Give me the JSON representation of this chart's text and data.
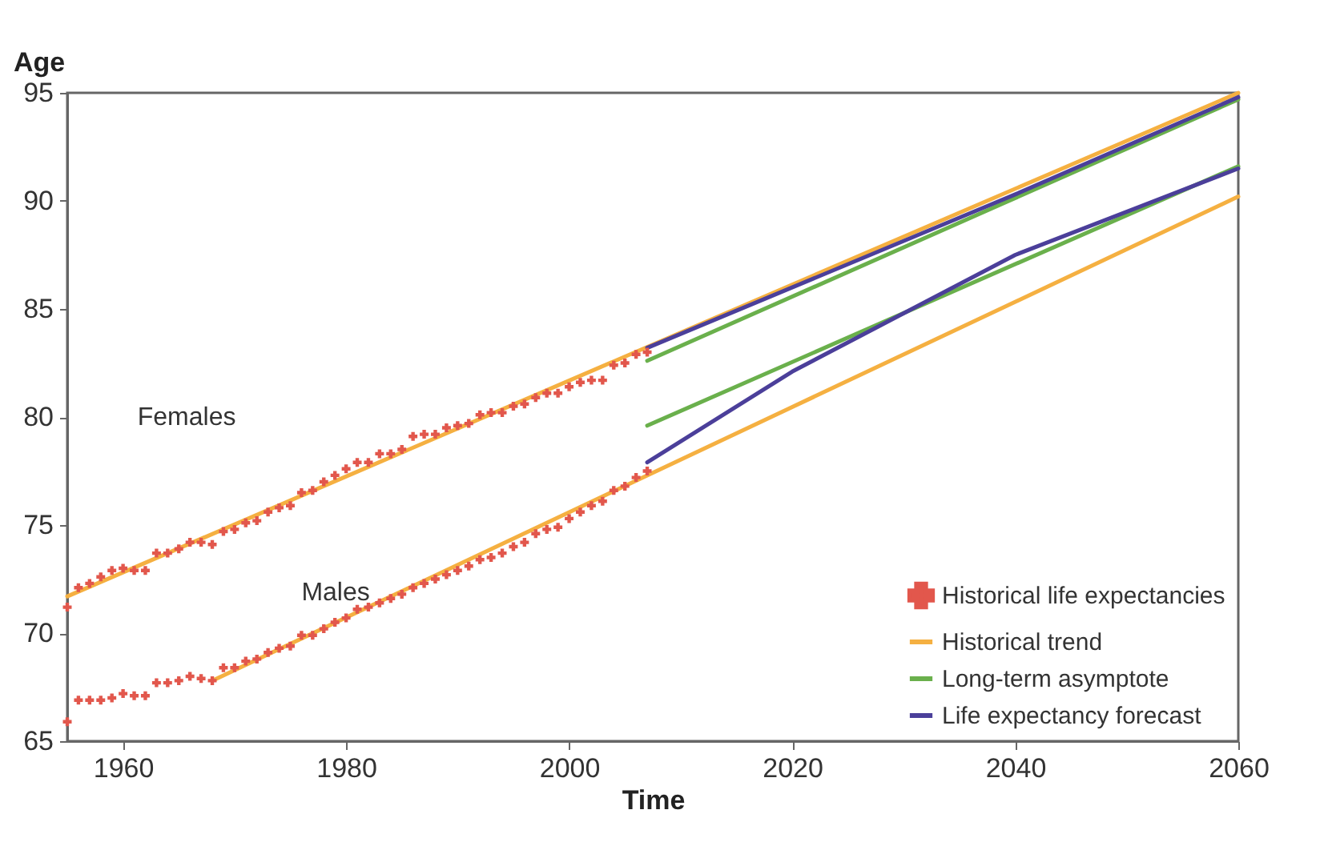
{
  "chart_data": {
    "type": "line",
    "xlabel": "Time",
    "ylabel": "Age",
    "xlim": [
      1955,
      2060
    ],
    "xticks": [
      1960,
      1980,
      2000,
      2020,
      2040,
      2060
    ],
    "ylim": [
      65,
      95
    ],
    "yticks": [
      65,
      70,
      75,
      80,
      85,
      90,
      95
    ],
    "grid": false,
    "legend": "bottom right",
    "annotations": [
      "Females",
      "Males"
    ],
    "series": [
      {
        "name": "Historical life expectancies",
        "type": "scatter",
        "marker": "cross",
        "color": "#e2574c",
        "x": [
          1955,
          1956,
          1957,
          1958,
          1959,
          1960,
          1961,
          1962,
          1963,
          1964,
          1965,
          1966,
          1967,
          1968,
          1969,
          1970,
          1971,
          1972,
          1973,
          1974,
          1975,
          1976,
          1977,
          1978,
          1979,
          1980,
          1981,
          1982,
          1983,
          1984,
          1985,
          1986,
          1987,
          1988,
          1989,
          1990,
          1991,
          1992,
          1993,
          1994,
          1995,
          1996,
          1997,
          1998,
          1999,
          2000,
          2001,
          2002,
          2003,
          2004,
          2005,
          2006,
          2007
        ],
        "values": [
          71.2,
          72.1,
          72.3,
          72.6,
          72.9,
          73.0,
          72.9,
          72.9,
          73.7,
          73.7,
          73.9,
          74.2,
          74.2,
          74.1,
          74.7,
          74.8,
          75.1,
          75.2,
          75.6,
          75.8,
          75.9,
          76.5,
          76.6,
          77.0,
          77.3,
          77.6,
          77.9,
          77.9,
          78.3,
          78.3,
          78.5,
          79.1,
          79.2,
          79.2,
          79.5,
          79.6,
          79.7,
          80.1,
          80.2,
          80.2,
          80.5,
          80.6,
          80.9,
          81.1,
          81.1,
          81.4,
          81.6,
          81.7,
          81.7,
          82.4,
          82.5,
          82.9,
          83.0
        ]
      },
      {
        "type": "scatter",
        "marker": "cross",
        "color": "#e2574c",
        "x": [
          1955,
          1956,
          1957,
          1958,
          1959,
          1960,
          1961,
          1962,
          1963,
          1964,
          1965,
          1966,
          1967,
          1968,
          1969,
          1970,
          1971,
          1972,
          1973,
          1974,
          1975,
          1976,
          1977,
          1978,
          1979,
          1980,
          1981,
          1982,
          1983,
          1984,
          1985,
          1986,
          1987,
          1988,
          1989,
          1990,
          1991,
          1992,
          1993,
          1994,
          1995,
          1996,
          1997,
          1998,
          1999,
          2000,
          2001,
          2002,
          2003,
          2004,
          2005,
          2006,
          2007
        ],
        "values": [
          65.9,
          66.9,
          66.9,
          66.9,
          67.0,
          67.2,
          67.1,
          67.1,
          67.7,
          67.7,
          67.8,
          68.0,
          67.9,
          67.8,
          68.4,
          68.4,
          68.7,
          68.8,
          69.1,
          69.3,
          69.4,
          69.9,
          69.9,
          70.2,
          70.5,
          70.7,
          71.1,
          71.2,
          71.4,
          71.6,
          71.8,
          72.1,
          72.3,
          72.5,
          72.7,
          72.9,
          73.1,
          73.4,
          73.5,
          73.7,
          74.0,
          74.2,
          74.6,
          74.8,
          74.9,
          75.3,
          75.6,
          75.9,
          76.1,
          76.6,
          76.8,
          77.2,
          77.5
        ]
      },
      {
        "name": "Historical trend",
        "color": "#f5b041",
        "x": [
          1955,
          2060
        ],
        "values": [
          71.7,
          95.0
        ]
      },
      {
        "color": "#f5b041",
        "x": [
          1968,
          2060
        ],
        "values": [
          67.8,
          90.2
        ]
      },
      {
        "name": "Long-term asymptote",
        "color": "#6ab04c",
        "x": [
          2007,
          2060
        ],
        "values": [
          82.6,
          94.7
        ]
      },
      {
        "color": "#6ab04c",
        "x": [
          2007,
          2060
        ],
        "values": [
          79.6,
          91.6
        ]
      },
      {
        "name": "Life expectancy forecast",
        "color": "#4b3f9a",
        "x": [
          2007,
          2040,
          2060
        ],
        "values": [
          83.2,
          90.3,
          94.8
        ]
      },
      {
        "color": "#4b3f9a",
        "x": [
          2007,
          2020,
          2040,
          2060
        ],
        "values": [
          77.9,
          82.1,
          87.5,
          91.5
        ]
      }
    ]
  }
}
